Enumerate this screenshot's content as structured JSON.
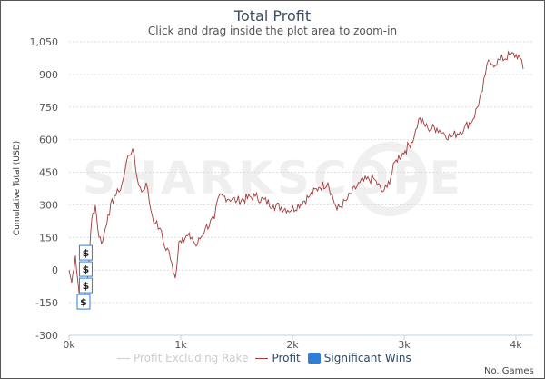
{
  "chart_data": {
    "type": "line",
    "title": "Total Profit",
    "subtitle": "Click and drag inside the plot area to zoom-in",
    "xlabel": "No. Games",
    "ylabel": "Cumulative Total (USD)",
    "xlim": [
      0,
      4100
    ],
    "ylim": [
      -300,
      1050
    ],
    "xticks": [
      0,
      1000,
      2000,
      3000,
      4000
    ],
    "xtick_labels": [
      "0k",
      "1k",
      "2k",
      "3k",
      "4k"
    ],
    "yticks": [
      -300,
      -150,
      0,
      150,
      300,
      450,
      600,
      750,
      900,
      1050
    ],
    "ytick_labels": [
      "-300",
      "-150",
      "0",
      "150",
      "300",
      "450",
      "600",
      "750",
      "900",
      "1,050"
    ],
    "grid": true,
    "watermark": "SHARKSCOPE",
    "legend": [
      {
        "name": "Profit Excluding Rake",
        "color": "#cccccc",
        "hidden": true
      },
      {
        "name": "Profit",
        "color": "#a23a3a"
      },
      {
        "name": "Significant Wins",
        "color": "#2f7ed8"
      }
    ],
    "series": [
      {
        "name": "Profit",
        "color": "#a23a3a",
        "points": [
          [
            0,
            0
          ],
          [
            24,
            -58
          ],
          [
            57,
            67
          ],
          [
            89,
            -99
          ],
          [
            106,
            -162
          ],
          [
            138,
            -141
          ],
          [
            171,
            -16
          ],
          [
            203,
            235
          ],
          [
            236,
            298
          ],
          [
            268,
            151
          ],
          [
            301,
            131
          ],
          [
            350,
            256
          ],
          [
            407,
            340
          ],
          [
            447,
            360
          ],
          [
            488,
            423
          ],
          [
            528,
            528
          ],
          [
            569,
            557
          ],
          [
            610,
            423
          ],
          [
            650,
            360
          ],
          [
            691,
            402
          ],
          [
            732,
            277
          ],
          [
            772,
            214
          ],
          [
            813,
            193
          ],
          [
            854,
            110
          ],
          [
            894,
            89
          ],
          [
            935,
            -16
          ],
          [
            951,
            -37
          ],
          [
            984,
            131
          ],
          [
            1016,
            151
          ],
          [
            1098,
            151
          ],
          [
            1138,
            110
          ],
          [
            1220,
            193
          ],
          [
            1301,
            235
          ],
          [
            1341,
            340
          ],
          [
            1382,
            340
          ],
          [
            1504,
            319
          ],
          [
            1667,
            340
          ],
          [
            1829,
            298
          ],
          [
            1992,
            277
          ],
          [
            2154,
            340
          ],
          [
            2236,
            381
          ],
          [
            2317,
            402
          ],
          [
            2398,
            277
          ],
          [
            2480,
            319
          ],
          [
            2602,
            402
          ],
          [
            2724,
            423
          ],
          [
            2805,
            360
          ],
          [
            2846,
            381
          ],
          [
            2927,
            507
          ],
          [
            3008,
            549
          ],
          [
            3089,
            611
          ],
          [
            3130,
            695
          ],
          [
            3211,
            653
          ],
          [
            3293,
            653
          ],
          [
            3415,
            611
          ],
          [
            3537,
            653
          ],
          [
            3618,
            695
          ],
          [
            3699,
            820
          ],
          [
            3740,
            946
          ],
          [
            3780,
            946
          ],
          [
            3862,
            967
          ],
          [
            3943,
            988
          ],
          [
            4024,
            988
          ],
          [
            4065,
            925
          ]
        ]
      }
    ],
    "significant_wins": [
      {
        "x": 150,
        "y": 80,
        "label": "$"
      },
      {
        "x": 150,
        "y": 25,
        "label": "$"
      },
      {
        "x": 150,
        "y": -10,
        "label": "$"
      },
      {
        "x": 130,
        "y": -80,
        "label": "$"
      }
    ]
  }
}
